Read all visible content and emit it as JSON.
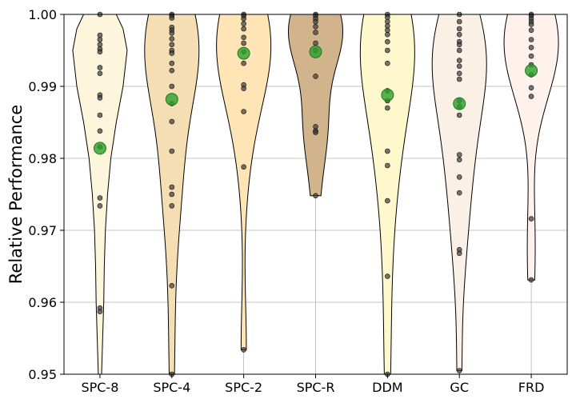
{
  "chart_data": {
    "type": "violin",
    "title": "",
    "xlabel": "",
    "ylabel": "Relative Performance",
    "ylim": [
      0.95,
      1.0
    ],
    "yticks": [
      0.95,
      0.96,
      0.97,
      0.98,
      0.99,
      1.0
    ],
    "ytick_labels": [
      "0.95",
      "0.96",
      "0.97",
      "0.98",
      "0.99",
      "1.00"
    ],
    "grid": true,
    "categories": [
      "SPC-8",
      "SPC-4",
      "SPC-2",
      "SPC-R",
      "DDM",
      "GC",
      "FRD"
    ],
    "series": [
      {
        "name": "SPC-8",
        "fill": "#fdf5dc",
        "mean": 0.9814,
        "points": [
          1.0,
          0.9971,
          0.9965,
          0.9958,
          0.9952,
          0.9948,
          0.9926,
          0.9918,
          0.9888,
          0.9884,
          0.986,
          0.9838,
          0.9816,
          0.9745,
          0.9734,
          0.9592,
          0.9587
        ],
        "shape": [
          [
            0.95,
            0.06
          ],
          [
            0.955,
            0.1
          ],
          [
            0.96,
            0.14
          ],
          [
            0.965,
            0.16
          ],
          [
            0.97,
            0.2
          ],
          [
            0.975,
            0.28
          ],
          [
            0.98,
            0.4
          ],
          [
            0.985,
            0.6
          ],
          [
            0.99,
            0.85
          ],
          [
            0.995,
            1.0
          ],
          [
            0.998,
            0.85
          ],
          [
            1.0,
            0.6
          ]
        ]
      },
      {
        "name": "SPC-4",
        "fill": "#f5deb3",
        "mean": 0.9882,
        "points": [
          1.0,
          0.9998,
          0.9995,
          0.9982,
          0.9978,
          0.9974,
          0.9966,
          0.9958,
          0.995,
          0.9946,
          0.9932,
          0.9922,
          0.99,
          0.9876,
          0.9851,
          0.981,
          0.976,
          0.975,
          0.9734,
          0.9623,
          0.95
        ]
      },
      {
        "name": "SPC-2",
        "fill": "#ffe4b5",
        "mean": 0.9946,
        "points": [
          1.0,
          0.9998,
          0.9994,
          0.9987,
          0.998,
          0.9968,
          0.996,
          0.9948,
          0.9932,
          0.9902,
          0.9897,
          0.9865,
          0.9788,
          0.9534
        ]
      },
      {
        "name": "SPC-R",
        "fill": "#d2b48c",
        "mean": 0.9948,
        "points": [
          1.0,
          0.9998,
          0.9994,
          0.999,
          0.9983,
          0.9975,
          0.996,
          0.995,
          0.9914,
          0.9844,
          0.9838,
          0.9836,
          0.9748
        ]
      },
      {
        "name": "DDM",
        "fill": "#fff8cc",
        "mean": 0.9888,
        "points": [
          1.0,
          0.9996,
          0.999,
          0.9984,
          0.9978,
          0.9972,
          0.9962,
          0.995,
          0.9932,
          0.9894,
          0.988,
          0.987,
          0.981,
          0.979,
          0.9741,
          0.9636,
          0.95
        ]
      },
      {
        "name": "GC",
        "fill": "#faf0e6",
        "mean": 0.9876,
        "points": [
          1.0,
          0.999,
          0.998,
          0.9972,
          0.9962,
          0.9958,
          0.995,
          0.9936,
          0.9928,
          0.9918,
          0.991,
          0.988,
          0.9872,
          0.986,
          0.9805,
          0.9798,
          0.9774,
          0.9752,
          0.9673,
          0.9668,
          0.9505
        ]
      },
      {
        "name": "FRD",
        "fill": "#fff1ec",
        "mean": 0.9922,
        "points": [
          1.0,
          0.9998,
          0.9994,
          0.999,
          0.9986,
          0.9978,
          0.9965,
          0.9954,
          0.9942,
          0.993,
          0.9916,
          0.9898,
          0.9886,
          0.9716,
          0.9631
        ]
      }
    ]
  }
}
